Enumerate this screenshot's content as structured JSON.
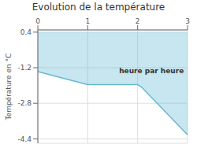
{
  "chart_data": {
    "type": "area",
    "title": "Evolution de la température",
    "ylabel": "Température en °C",
    "annotations": [
      {
        "text": "heure par heure",
        "x": 1.55,
        "y": -1.35
      }
    ],
    "x": [
      0,
      1,
      2,
      2.08,
      3
    ],
    "values": [
      -1.38,
      -1.96,
      -1.96,
      -2.08,
      -4.22
    ],
    "color": "#62b8d0",
    "xlim": [
      0,
      3
    ],
    "ylim": [
      -4.6,
      0.5
    ],
    "xticks": [
      0,
      1,
      2,
      3
    ],
    "yticks": [
      0.4,
      -1.2,
      -2.8,
      -4.4
    ],
    "grid": true
  }
}
